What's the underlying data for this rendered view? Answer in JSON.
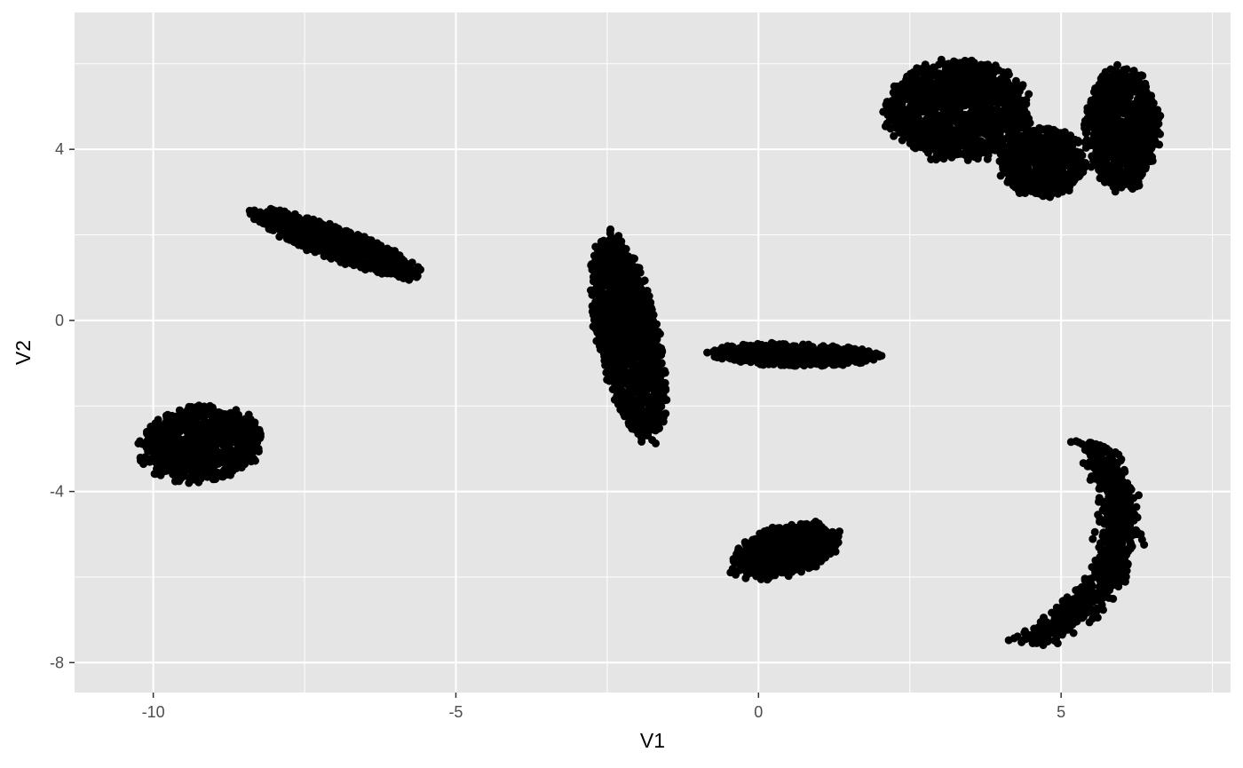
{
  "chart_data": {
    "type": "scatter",
    "title": "",
    "xlabel": "V1",
    "ylabel": "V2",
    "xlim": [
      -11.3,
      7.8
    ],
    "ylim": [
      -8.7,
      7.2
    ],
    "x_ticks": [
      -10,
      -5,
      0,
      5
    ],
    "y_ticks": [
      -8,
      -4,
      0,
      4
    ],
    "x_minor": [
      -7.5,
      -2.5,
      2.5,
      7.5
    ],
    "y_minor": [
      -6,
      -2,
      2,
      6
    ],
    "x_tick_labels": [
      "-10",
      "-5",
      "0",
      "5"
    ],
    "y_tick_labels": [
      "-8",
      "-4",
      "0",
      "4"
    ],
    "grid": true,
    "legend": "none",
    "colors": {
      "panel": "#e5e5e5",
      "grid": "#ffffff",
      "point": "#000000",
      "tick": "#4d4d4d"
    },
    "clusters": [
      {
        "region": "left-bottom",
        "shape": "blob",
        "cx": -9.2,
        "cy": -2.9,
        "rx": 1.0,
        "ry": 0.85,
        "angle": 20,
        "n": 750
      },
      {
        "region": "left-upper",
        "shape": "elongated",
        "cx": -7.0,
        "cy": 1.8,
        "rx": 1.55,
        "ry": 0.35,
        "angle": -28,
        "n": 700
      },
      {
        "region": "center-left",
        "shape": "tall",
        "cx": -2.15,
        "cy": -0.4,
        "rx": 0.5,
        "ry": 2.4,
        "angle": 8,
        "n": 1400
      },
      {
        "region": "center-tail",
        "shape": "elongated",
        "cx": 0.6,
        "cy": -0.8,
        "rx": 1.35,
        "ry": 0.25,
        "angle": -2,
        "n": 650
      },
      {
        "region": "center-bottom",
        "shape": "wedge",
        "cx": 0.45,
        "cy": -5.4,
        "rx": 0.95,
        "ry": 0.55,
        "angle": 25,
        "n": 650
      },
      {
        "region": "top-right-a",
        "shape": "blob",
        "cx": 3.3,
        "cy": 4.9,
        "rx": 1.15,
        "ry": 1.15,
        "angle": -30,
        "n": 1200
      },
      {
        "region": "top-right-b",
        "shape": "blob",
        "cx": 4.7,
        "cy": 3.7,
        "rx": 0.7,
        "ry": 0.8,
        "angle": 0,
        "n": 500
      },
      {
        "region": "top-right-c",
        "shape": "blob",
        "cx": 6.0,
        "cy": 4.5,
        "rx": 0.6,
        "ry": 1.4,
        "angle": 0,
        "n": 800
      },
      {
        "region": "right-bottom",
        "shape": "arc",
        "cx": 5.9,
        "cy": -5.4,
        "rx": 0.35,
        "ry": 2.4,
        "angle": -12,
        "n": 900
      }
    ]
  }
}
